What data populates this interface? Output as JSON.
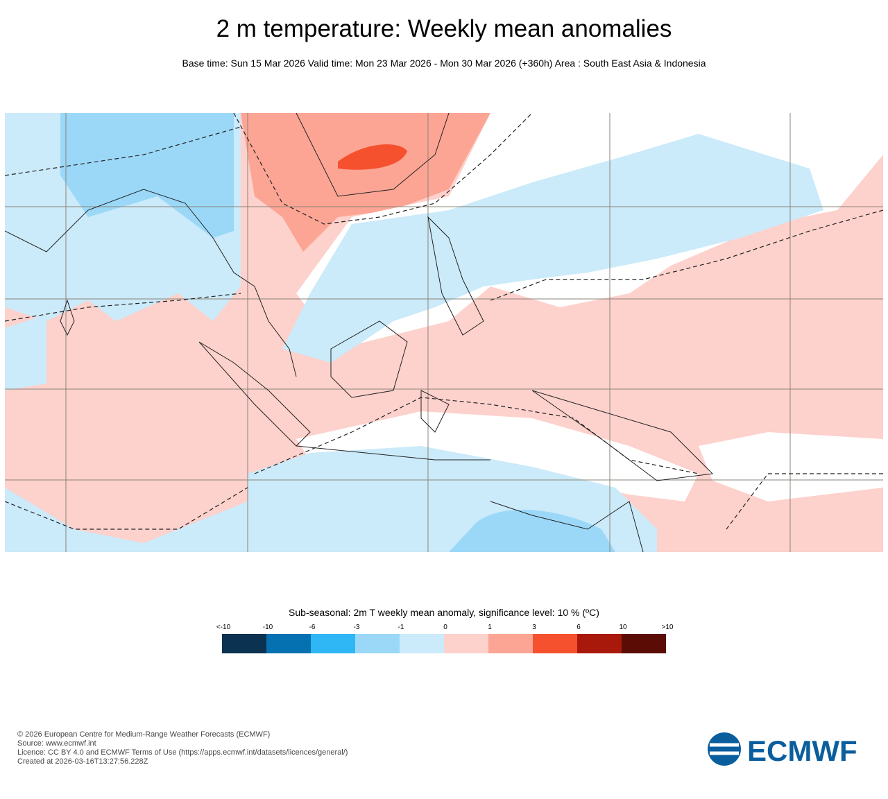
{
  "header": {
    "title": "2 m temperature: Weekly mean anomalies",
    "subtitle": "Base time: Sun 15 Mar 2026 Valid time: Mon 23 Mar 2026 - Mon 30 Mar 2026 (+360h) Area : South East Asia & Indonesia"
  },
  "legend": {
    "title": "Sub-seasonal: 2m T weekly mean anomaly, significance level: 10 % (ºC)",
    "labels": [
      "<-10",
      "-10",
      "-6",
      "-3",
      "-1",
      "0",
      "1",
      "3",
      "6",
      "10",
      ">10"
    ],
    "colors": [
      "#0b3250",
      "#0571b0",
      "#2fb7f5",
      "#9bd8f8",
      "#cbeafa",
      "#fdd1cc",
      "#fca594",
      "#f6512f",
      "#a9190b",
      "#5b0c05"
    ]
  },
  "footer": {
    "lines": [
      "© 2026 European Centre for Medium-Range Weather Forecasts (ECMWF)",
      "Source: www.ecmwf.int",
      "Licence: CC BY 4.0 and ECMWF Terms of Use (https://apps.ecmwf.int/datasets/licences/general/)",
      "Created at 2026-03-16T13:27:56.228Z"
    ]
  },
  "logo": {
    "text": "ECMWF"
  }
}
